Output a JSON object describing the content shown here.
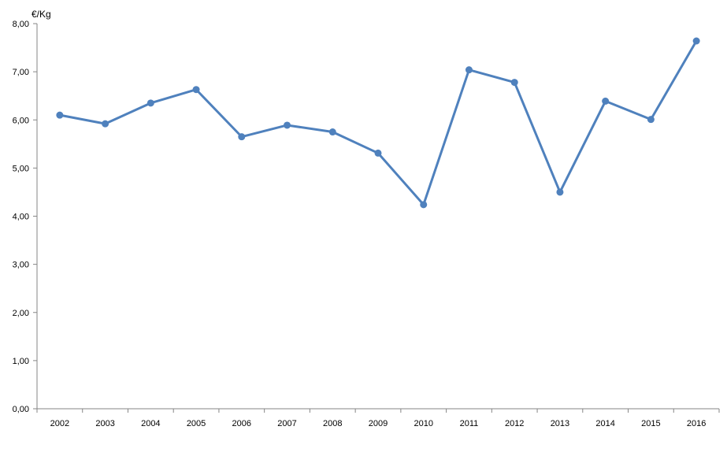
{
  "chart_data": {
    "type": "line",
    "ylabel": "€/Kg",
    "categories": [
      "2002",
      "2003",
      "2004",
      "2005",
      "2006",
      "2007",
      "2008",
      "2009",
      "2010",
      "2011",
      "2012",
      "2013",
      "2014",
      "2015",
      "2016"
    ],
    "series": [
      {
        "values": [
          6.1,
          5.92,
          6.35,
          6.63,
          5.65,
          5.89,
          5.75,
          5.31,
          4.24,
          7.04,
          6.78,
          4.5,
          6.39,
          6.01,
          7.64
        ]
      }
    ],
    "ylim": [
      0,
      8
    ],
    "yticks": [
      "0,00",
      "1,00",
      "2,00",
      "3,00",
      "4,00",
      "5,00",
      "6,00",
      "7,00",
      "8,00"
    ],
    "grid": false,
    "line_color": "#4F81BD",
    "axis_color": "#868686"
  }
}
